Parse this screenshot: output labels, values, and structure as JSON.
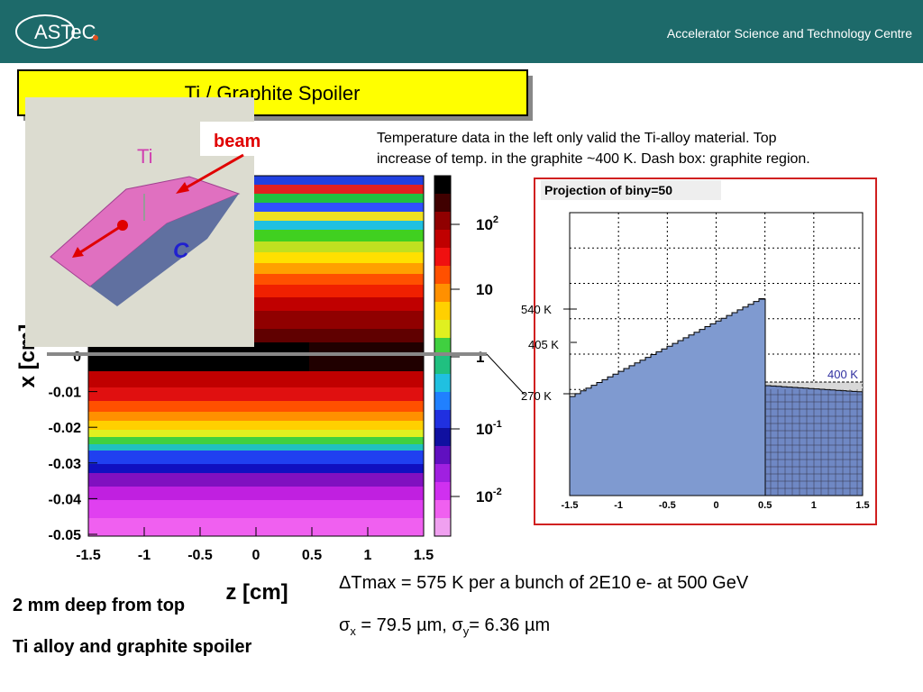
{
  "header": {
    "logo": "ASTeC",
    "org": "Accelerator Science and Technology Centre"
  },
  "title": "Ti / Graphite Spoiler",
  "note": "Temperature data in the left only valid the Ti-alloy material. Top increase of temp. in the graphite ~400 K. Dash box: graphite region.",
  "inset": {
    "beam": "beam",
    "ti": "Ti",
    "c": "C"
  },
  "heatmap": {
    "x_label": "z [cm]",
    "y_label": "x [cm]",
    "x_ticks": [
      "-1.5",
      "-1",
      "-0.5",
      "0",
      "0.5",
      "1",
      "1.5"
    ],
    "y_ticks": [
      "0",
      "-0.01",
      "-0.02",
      "-0.03",
      "-0.04",
      "-0.05"
    ],
    "colorbar_ticks": [
      {
        "base": "10",
        "exp": "2"
      },
      {
        "base": "10"
      },
      {
        "base": "1"
      },
      {
        "base": "10",
        "exp": "-1"
      },
      {
        "base": "10",
        "exp": "-2"
      }
    ]
  },
  "projection": {
    "title": "Projection of biny=50",
    "x_ticks": [
      "-1.5",
      "-1",
      "-0.5",
      "0",
      "0.5",
      "1",
      "1.5"
    ],
    "labels": [
      "540 K",
      "405 K",
      "270 K",
      "400 K"
    ]
  },
  "bottom": {
    "dtmax": "ΔTmax = 575 K per a bunch of 2E10 e- at 500 GeV",
    "sigma": [
      {
        "text": "σ"
      },
      {
        "sub": "x"
      },
      {
        "text": " = 79.5 µm, σ"
      },
      {
        "sub": "y"
      },
      {
        "text": "= 6.36 µm"
      }
    ],
    "line1": "2 mm deep from top",
    "line2": "Ti alloy and graphite spoiler"
  }
}
